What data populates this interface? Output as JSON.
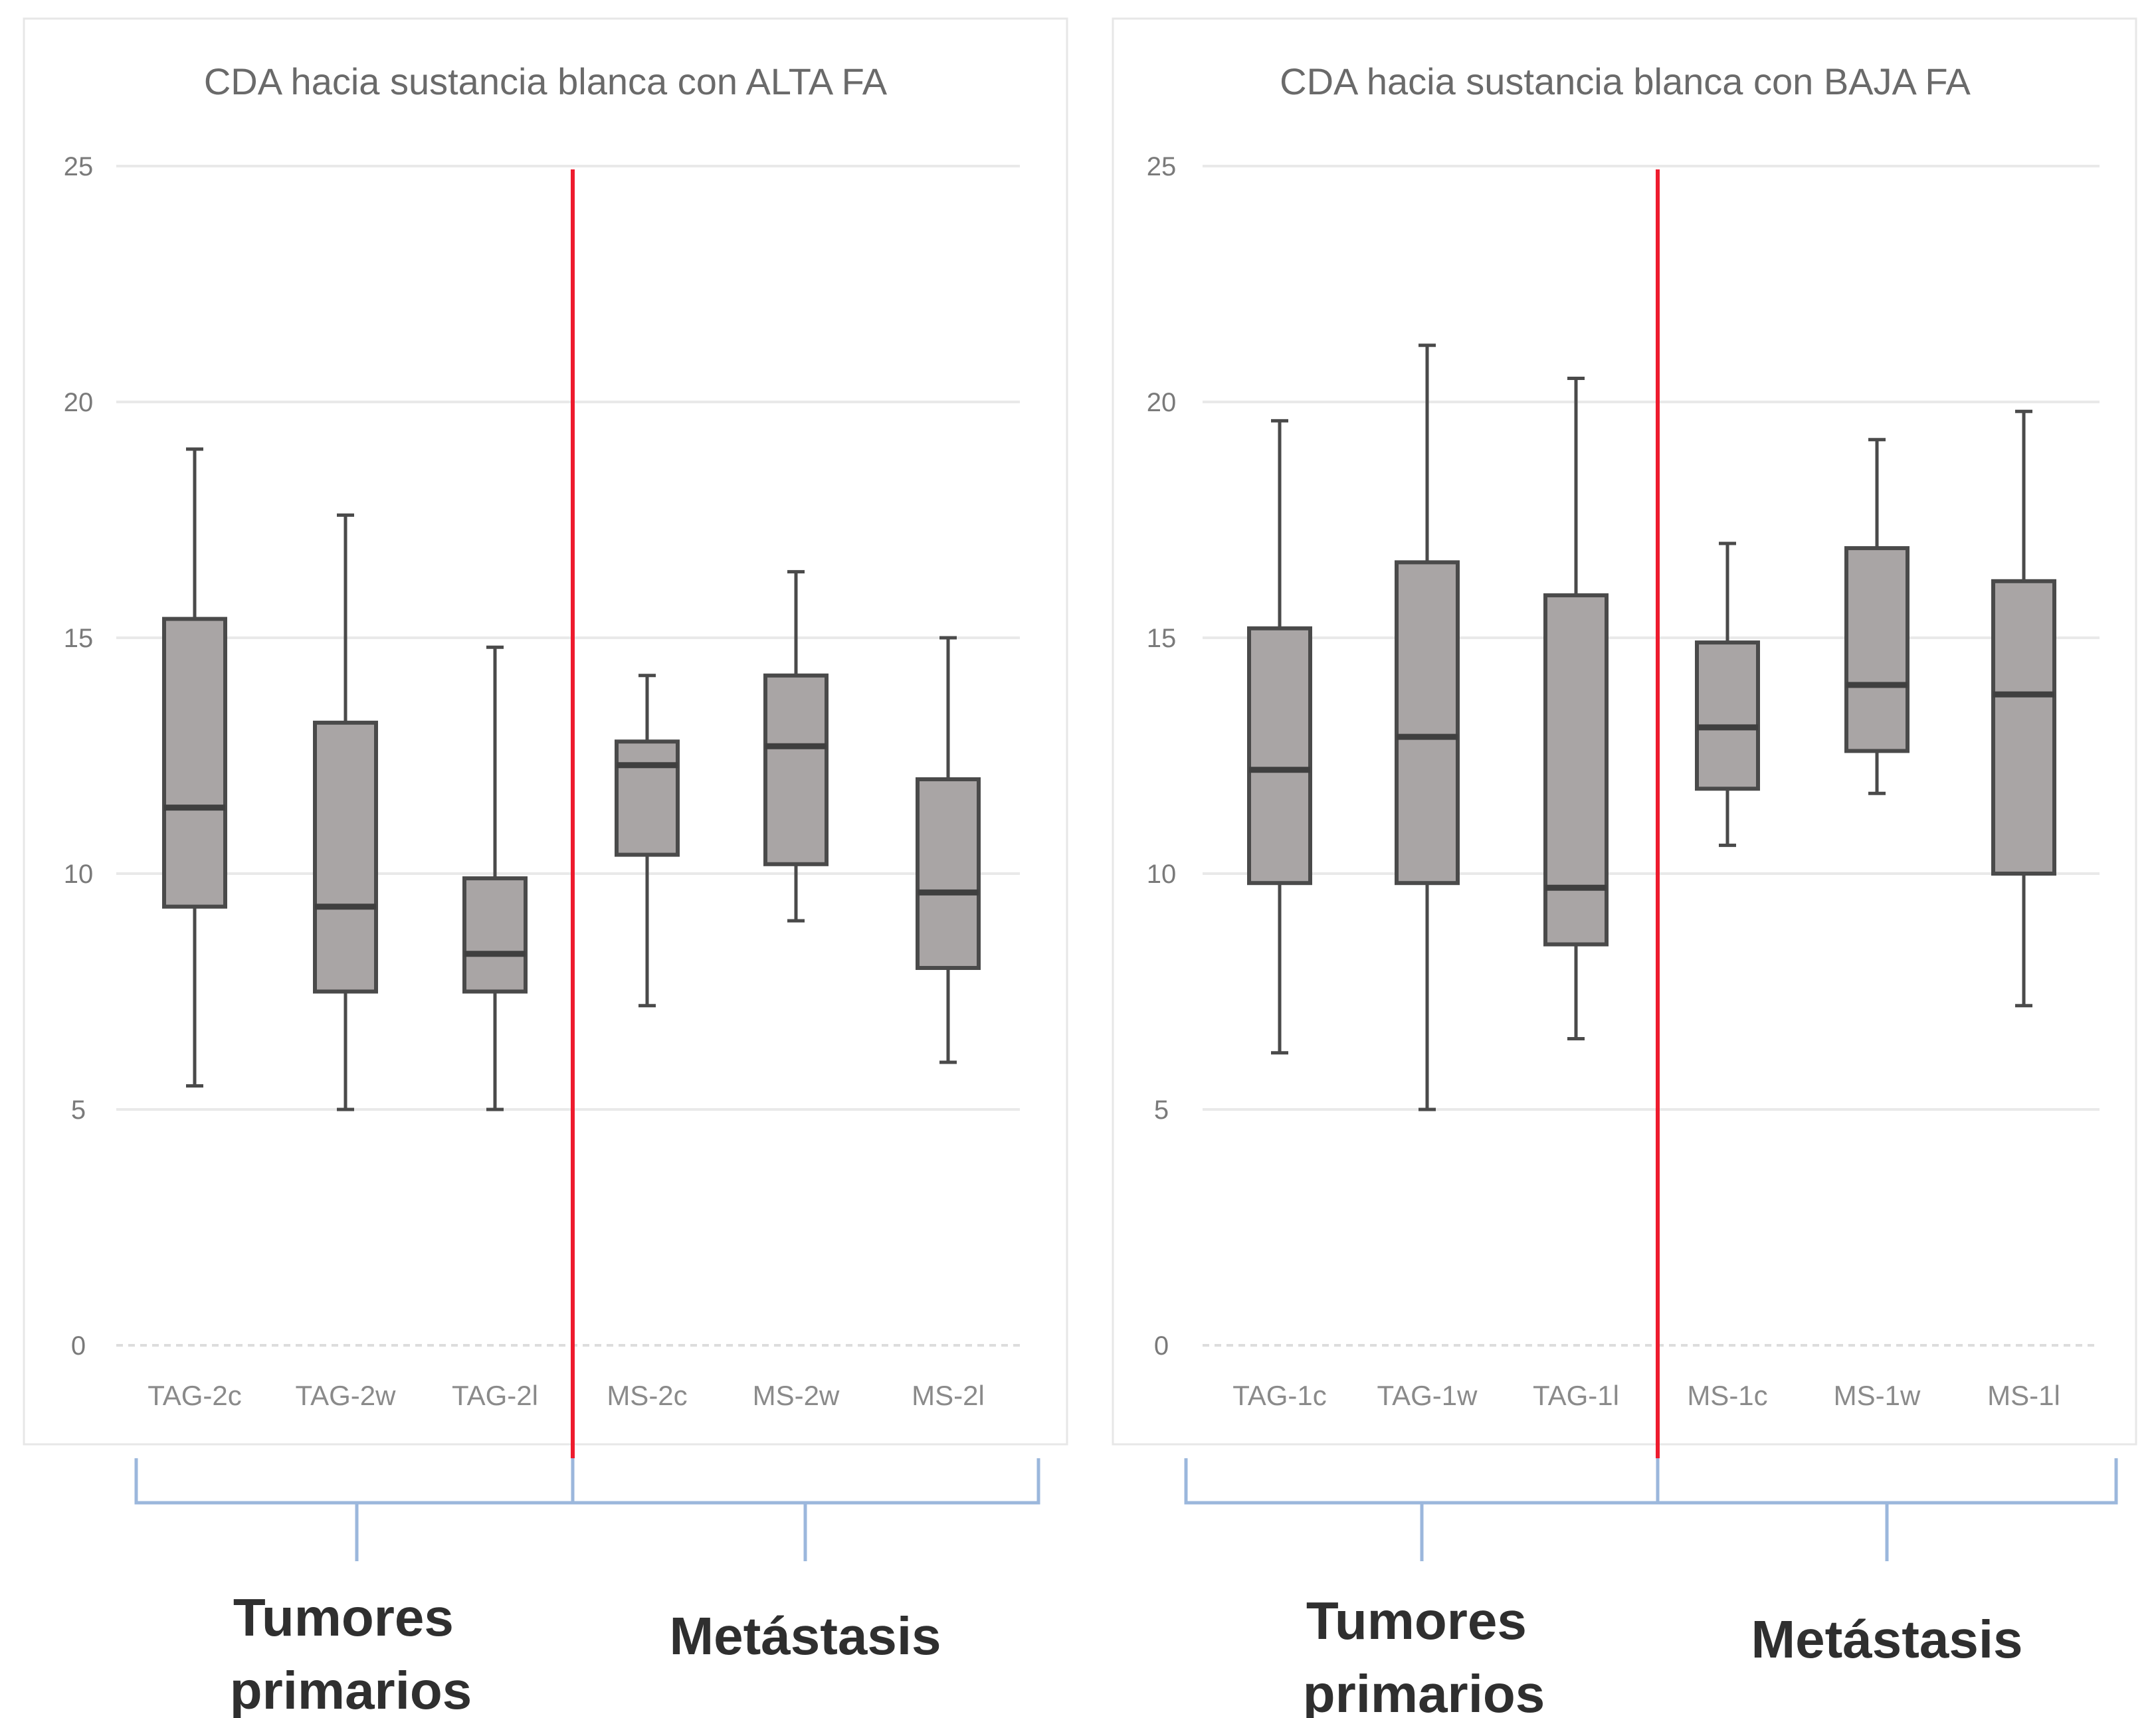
{
  "chart_data": [
    {
      "type": "box",
      "title": "CDA hacia sustancia blanca con ALTA FA",
      "ylim": [
        0,
        25
      ],
      "yticks": [
        "0",
        "5",
        "10",
        "15",
        "20",
        "25"
      ],
      "grid": true,
      "categories": [
        "TAG-2c",
        "TAG-2w",
        "TAG-2l",
        "MS-2c",
        "MS-2w",
        "MS-2l"
      ],
      "boxes": [
        {
          "min": 5.5,
          "q1": 9.3,
          "median": 11.4,
          "q3": 15.4,
          "max": 19.0
        },
        {
          "min": 5.0,
          "q1": 7.5,
          "median": 9.3,
          "q3": 13.2,
          "max": 17.6
        },
        {
          "min": 5.0,
          "q1": 7.5,
          "median": 8.3,
          "q3": 9.9,
          "max": 14.8
        },
        {
          "min": 7.2,
          "q1": 10.4,
          "median": 12.3,
          "q3": 12.8,
          "max": 14.2
        },
        {
          "min": 9.0,
          "q1": 10.2,
          "median": 12.7,
          "q3": 14.2,
          "max": 16.4
        },
        {
          "min": 6.0,
          "q1": 8.0,
          "median": 9.6,
          "q3": 12.0,
          "max": 15.0
        }
      ],
      "groups": [
        {
          "label": "Tumores primarios",
          "lines": [
            "Tumores",
            "primarios"
          ]
        },
        {
          "label": "Metástasis",
          "lines": [
            "Metástasis"
          ]
        }
      ]
    },
    {
      "type": "box",
      "title": "CDA hacia sustancia blanca con BAJA FA",
      "ylim": [
        0,
        25
      ],
      "yticks": [
        "0",
        "5",
        "10",
        "15",
        "20",
        "25"
      ],
      "grid": true,
      "categories": [
        "TAG-1c",
        "TAG-1w",
        "TAG-1l",
        "MS-1c",
        "MS-1w",
        "MS-1l"
      ],
      "boxes": [
        {
          "min": 6.2,
          "q1": 9.8,
          "median": 12.2,
          "q3": 15.2,
          "max": 19.6
        },
        {
          "min": 5.0,
          "q1": 9.8,
          "median": 12.9,
          "q3": 16.6,
          "max": 21.2
        },
        {
          "min": 6.5,
          "q1": 8.5,
          "median": 9.7,
          "q3": 15.9,
          "max": 20.5
        },
        {
          "min": 10.6,
          "q1": 11.8,
          "median": 13.1,
          "q3": 14.9,
          "max": 17.0
        },
        {
          "min": 11.7,
          "q1": 12.6,
          "median": 14.0,
          "q3": 16.9,
          "max": 19.2
        },
        {
          "min": 7.2,
          "q1": 10.0,
          "median": 13.8,
          "q3": 16.2,
          "max": 19.8
        }
      ],
      "groups": [
        {
          "label": "Tumores primarios",
          "lines": [
            "Tumores",
            "primarios"
          ]
        },
        {
          "label": "Metástasis",
          "lines": [
            "Metástasis"
          ]
        }
      ]
    }
  ],
  "colors": {
    "box_fill": "#a9a5a5",
    "box_stroke": "#4a4a4a",
    "divider": "#ee1c2e",
    "brace": "#9bb7dc"
  }
}
